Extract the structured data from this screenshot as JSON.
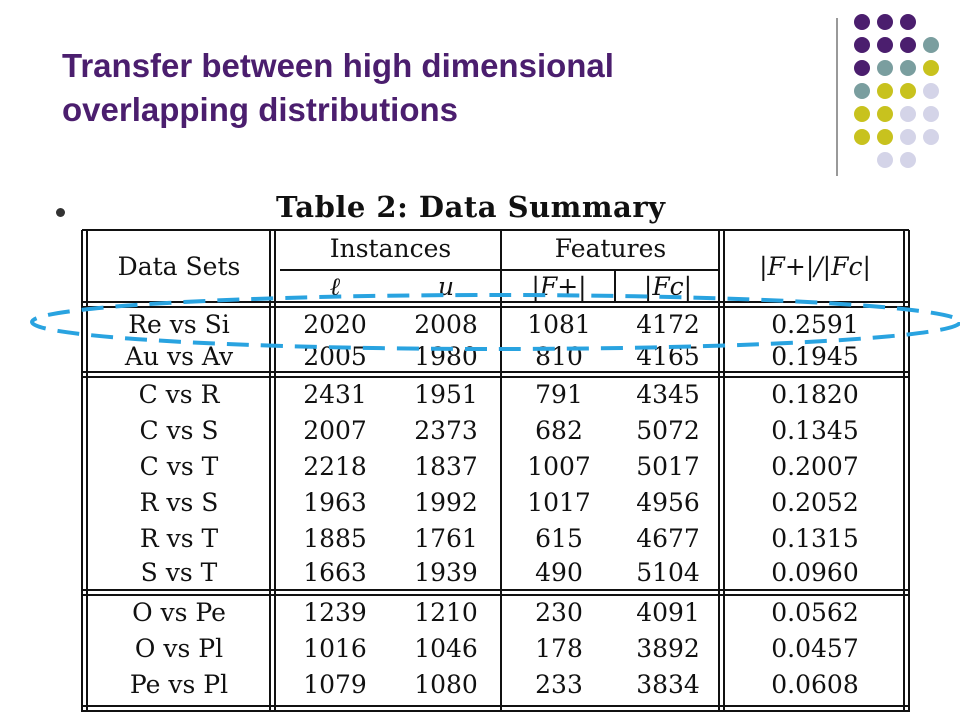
{
  "slide": {
    "title_line1": "Transfer between high dimensional",
    "title_line2": "overlapping distributions",
    "title_color": "#4b1e6e"
  },
  "decoration": {
    "dot_colors": {
      "purple": "#4b1e6e",
      "teal": "#7a9e9f",
      "olive": "#c8c21e",
      "lavender": "#d4d4e8"
    },
    "highlight_color": "#29a3e0"
  },
  "table": {
    "caption": "Table 2: Data Summary",
    "headers": {
      "data_sets": "Data Sets",
      "instances": "Instances",
      "features": "Features",
      "ratio": "|F+|/|Fc|",
      "l": "ℓ",
      "u": "u",
      "f_plus": "|F+|",
      "f_c": "|Fc|"
    },
    "groups": [
      [
        [
          "Re vs Si",
          "2020",
          "2008",
          "1081",
          "4172",
          "0.2591"
        ],
        [
          "Au vs Av",
          "2005",
          "1980",
          "810",
          "4165",
          "0.1945"
        ]
      ],
      [
        [
          "C vs R",
          "2431",
          "1951",
          "791",
          "4345",
          "0.1820"
        ],
        [
          "C vs S",
          "2007",
          "2373",
          "682",
          "5072",
          "0.1345"
        ],
        [
          "C vs T",
          "2218",
          "1837",
          "1007",
          "5017",
          "0.2007"
        ],
        [
          "R vs S",
          "1963",
          "1992",
          "1017",
          "4956",
          "0.2052"
        ],
        [
          "R vs T",
          "1885",
          "1761",
          "615",
          "4677",
          "0.1315"
        ],
        [
          "S vs T",
          "1663",
          "1939",
          "490",
          "5104",
          "0.0960"
        ]
      ],
      [
        [
          "O vs Pe",
          "1239",
          "1210",
          "230",
          "4091",
          "0.0562"
        ],
        [
          "O vs Pl",
          "1016",
          "1046",
          "178",
          "3892",
          "0.0457"
        ],
        [
          "Pe vs Pl",
          "1079",
          "1080",
          "233",
          "3834",
          "0.0608"
        ]
      ]
    ]
  }
}
